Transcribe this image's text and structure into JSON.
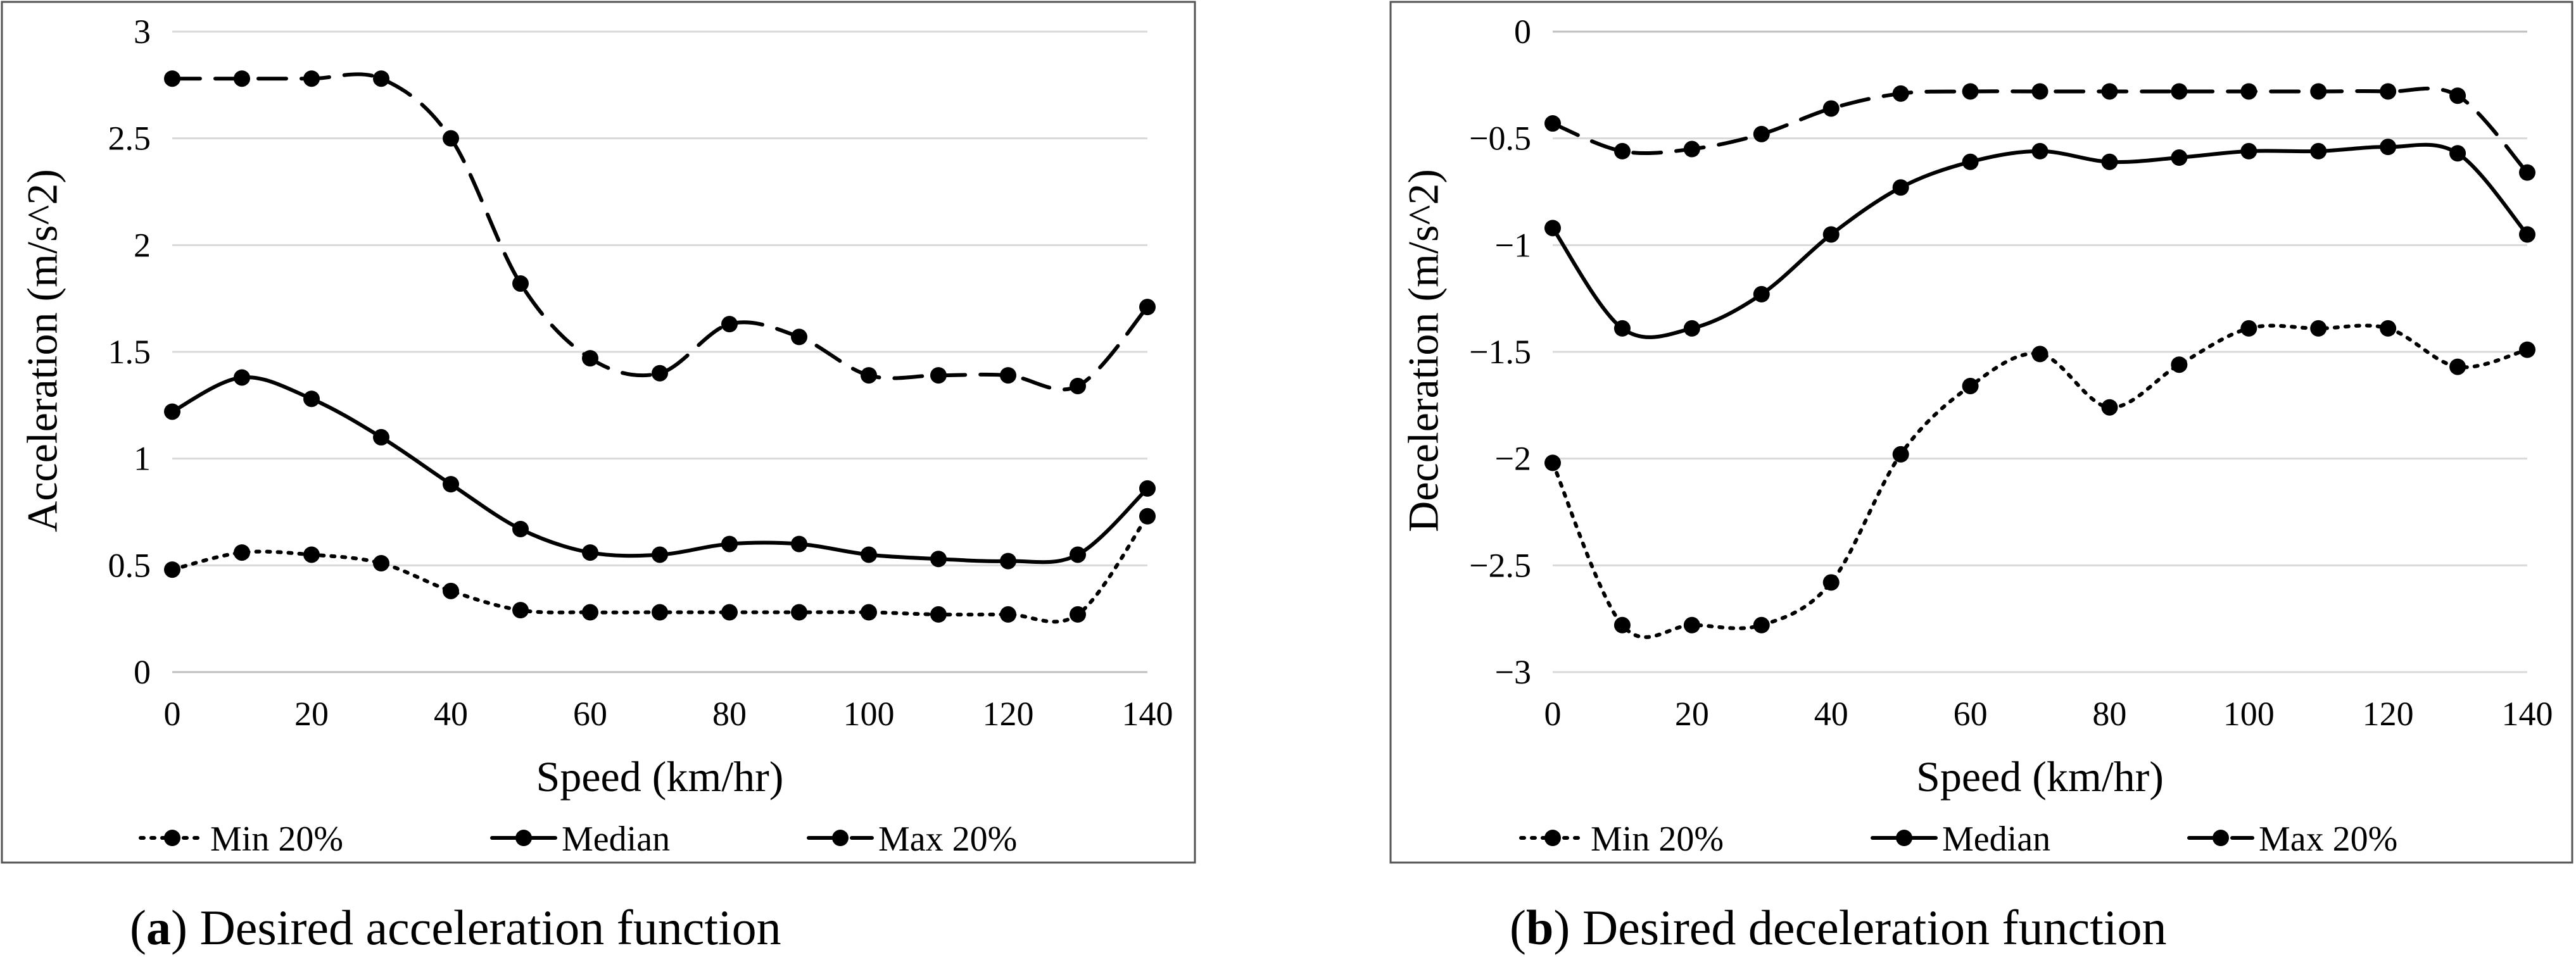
{
  "chart_data": [
    {
      "type": "line",
      "caption_letter": "a",
      "caption_text": "Desired acceleration function",
      "xlabel": "Speed (km/hr)",
      "ylabel": "Acceleration (m/s^2)",
      "xlim": [
        0,
        140
      ],
      "ylim": [
        0,
        3
      ],
      "xticks": [
        0,
        20,
        40,
        60,
        80,
        100,
        120,
        140
      ],
      "yticks": [
        0,
        0.5,
        1,
        1.5,
        2,
        2.5,
        3
      ],
      "ytick_labels": [
        "0",
        "0.5",
        "1",
        "1.5",
        "2",
        "2.5",
        "3"
      ],
      "grid": true,
      "legend_position": "bottom",
      "x": [
        0,
        10,
        20,
        30,
        40,
        50,
        60,
        70,
        80,
        90,
        100,
        110,
        120,
        130,
        140
      ],
      "series": [
        {
          "name": "Min 20%",
          "style": "dotted",
          "values": [
            0.48,
            0.56,
            0.55,
            0.51,
            0.38,
            0.29,
            0.28,
            0.28,
            0.28,
            0.28,
            0.28,
            0.27,
            0.27,
            0.27,
            0.73
          ]
        },
        {
          "name": "Median",
          "style": "solid",
          "values": [
            1.22,
            1.38,
            1.28,
            1.1,
            0.88,
            0.67,
            0.56,
            0.55,
            0.6,
            0.6,
            0.55,
            0.53,
            0.52,
            0.55,
            0.86
          ]
        },
        {
          "name": "Max 20%",
          "style": "dashed",
          "values": [
            2.78,
            2.78,
            2.78,
            2.78,
            2.5,
            1.82,
            1.47,
            1.4,
            1.63,
            1.57,
            1.39,
            1.39,
            1.39,
            1.34,
            1.71
          ]
        }
      ]
    },
    {
      "type": "line",
      "caption_letter": "b",
      "caption_text": "Desired deceleration function",
      "xlabel": "Speed (km/hr)",
      "ylabel": "Deceleration (m/s^2)",
      "xlim": [
        0,
        140
      ],
      "ylim": [
        -3,
        0
      ],
      "xticks": [
        0,
        20,
        40,
        60,
        80,
        100,
        120,
        140
      ],
      "yticks": [
        -3,
        -2.5,
        -2,
        -1.5,
        -1,
        -0.5,
        0
      ],
      "ytick_labels": [
        "−3",
        "−2.5",
        "−2",
        "−1.5",
        "−1",
        "−0.5",
        "0"
      ],
      "grid": true,
      "legend_position": "bottom",
      "x": [
        0,
        10,
        20,
        30,
        40,
        50,
        60,
        70,
        80,
        90,
        100,
        110,
        120,
        130,
        140
      ],
      "series": [
        {
          "name": "Min 20%",
          "style": "dotted",
          "values": [
            -2.02,
            -2.78,
            -2.78,
            -2.78,
            -2.58,
            -1.98,
            -1.66,
            -1.51,
            -1.76,
            -1.56,
            -1.39,
            -1.39,
            -1.39,
            -1.57,
            -1.49
          ]
        },
        {
          "name": "Median",
          "style": "solid",
          "values": [
            -0.92,
            -1.39,
            -1.39,
            -1.23,
            -0.95,
            -0.73,
            -0.61,
            -0.56,
            -0.61,
            -0.59,
            -0.56,
            -0.56,
            -0.54,
            -0.57,
            -0.95
          ]
        },
        {
          "name": "Max 20%",
          "style": "dashed",
          "values": [
            -0.43,
            -0.56,
            -0.55,
            -0.48,
            -0.36,
            -0.29,
            -0.28,
            -0.28,
            -0.28,
            -0.28,
            -0.28,
            -0.28,
            -0.28,
            -0.3,
            -0.66
          ]
        }
      ]
    }
  ]
}
